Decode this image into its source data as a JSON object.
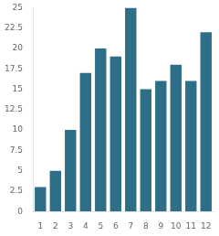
{
  "chart_data": {
    "type": "bar",
    "categories": [
      "1",
      "2",
      "3",
      "4",
      "5",
      "6",
      "7",
      "8",
      "9",
      "10",
      "11",
      "12"
    ],
    "values": [
      3,
      5,
      10,
      17,
      20,
      19,
      25,
      15,
      16,
      18,
      16,
      22
    ],
    "color": "#2e6e87",
    "ylim": [
      0,
      25
    ],
    "yticks": [
      0,
      2.5,
      5,
      7.5,
      10,
      12.5,
      15,
      17.5,
      20,
      22.5,
      25
    ],
    "grid": false
  }
}
